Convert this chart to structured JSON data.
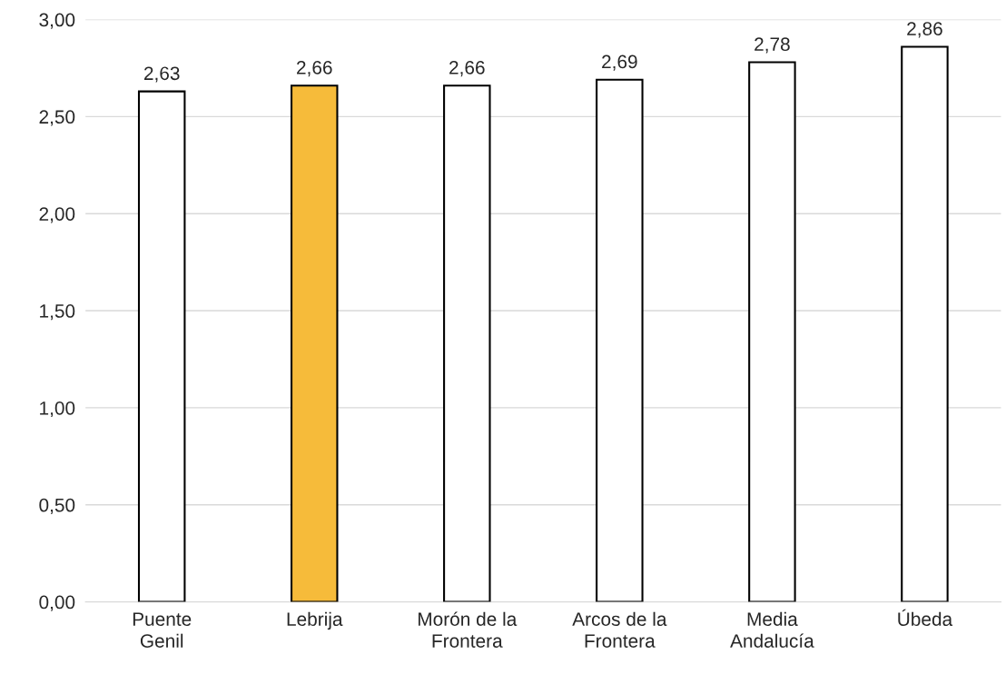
{
  "chart_data": {
    "type": "bar",
    "categories": [
      "Puente\nGenil",
      "Lebrija",
      "Morón de la\nFrontera",
      "Arcos de la\nFrontera",
      "Media\nAndalucía",
      "Úbeda"
    ],
    "values": [
      2.63,
      2.66,
      2.66,
      2.69,
      2.78,
      2.86
    ],
    "colors": [
      "#ffffff",
      "#f6bb3a",
      "#ffffff",
      "#ffffff",
      "#ffffff",
      "#ffffff"
    ],
    "value_labels": [
      "2,63",
      "2,66",
      "2,66",
      "2,69",
      "2,78",
      "2,86"
    ],
    "ylim": [
      0,
      3
    ],
    "yticks": [
      {
        "value": 0,
        "label": "0,00"
      },
      {
        "value": 0.5,
        "label": "0,50"
      },
      {
        "value": 1,
        "label": "1,00"
      },
      {
        "value": 1.5,
        "label": "1,50"
      },
      {
        "value": 2,
        "label": "2,00"
      },
      {
        "value": 2.5,
        "label": "2,50"
      },
      {
        "value": 3,
        "label": "3,00"
      }
    ],
    "grid": "y"
  }
}
